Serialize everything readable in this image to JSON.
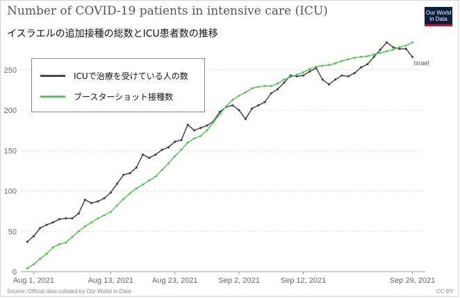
{
  "header": {
    "title": "Number of COVID-19 patients in intensive care (ICU)",
    "subtitle": "イスラエルの追加接種の総数とICU患者数の推移"
  },
  "logo": {
    "line1": "Our World",
    "line2": "in Data"
  },
  "footer": {
    "source": "Source: Official data collated by Our World in Data",
    "license": "CC BY"
  },
  "colors": {
    "icu": "#444444",
    "booster": "#5ec05e"
  },
  "chart_data": {
    "type": "line",
    "title": "Number of COVID-19 patients in intensive care (ICU)",
    "xlabel": "",
    "ylabel": "",
    "ylim": [
      0,
      285
    ],
    "xlim": [
      "2021-07-30",
      "2021-10-01"
    ],
    "grid": true,
    "legend_placement": "top-left",
    "yticks": [
      0,
      50,
      100,
      150,
      200,
      250
    ],
    "xticks": [
      {
        "date": "2021-08-01",
        "label": "Aug 1, 2021"
      },
      {
        "date": "2021-08-13",
        "label": "Aug 13, 2021"
      },
      {
        "date": "2021-08-23",
        "label": "Aug 23, 2021"
      },
      {
        "date": "2021-09-02",
        "label": "Sep 2, 2021"
      },
      {
        "date": "2021-09-12",
        "label": "Sep 12, 2021"
      },
      {
        "date": "2021-09-29",
        "label": "Sep 29, 2021"
      }
    ],
    "end_label": "Israel",
    "series": [
      {
        "name": "ICUで治療を受けている人の数",
        "color": "#444444",
        "points": [
          [
            "2021-07-31",
            37
          ],
          [
            "2021-08-01",
            44
          ],
          [
            "2021-08-02",
            54
          ],
          [
            "2021-08-03",
            58
          ],
          [
            "2021-08-04",
            61
          ],
          [
            "2021-08-05",
            65
          ],
          [
            "2021-08-06",
            66
          ],
          [
            "2021-08-07",
            66
          ],
          [
            "2021-08-08",
            72
          ],
          [
            "2021-08-09",
            89
          ],
          [
            "2021-08-10",
            85
          ],
          [
            "2021-08-11",
            87
          ],
          [
            "2021-08-12",
            91
          ],
          [
            "2021-08-13",
            98
          ],
          [
            "2021-08-14",
            109
          ],
          [
            "2021-08-15",
            120
          ],
          [
            "2021-08-16",
            122
          ],
          [
            "2021-08-17",
            129
          ],
          [
            "2021-08-18",
            145
          ],
          [
            "2021-08-19",
            141
          ],
          [
            "2021-08-20",
            145
          ],
          [
            "2021-08-21",
            151
          ],
          [
            "2021-08-22",
            154
          ],
          [
            "2021-08-23",
            161
          ],
          [
            "2021-08-24",
            163
          ],
          [
            "2021-08-25",
            182
          ],
          [
            "2021-08-26",
            175
          ],
          [
            "2021-08-27",
            178
          ],
          [
            "2021-08-28",
            181
          ],
          [
            "2021-08-29",
            186
          ],
          [
            "2021-08-30",
            198
          ],
          [
            "2021-08-31",
            204
          ],
          [
            "2021-09-01",
            206
          ],
          [
            "2021-09-02",
            200
          ],
          [
            "2021-09-03",
            189
          ],
          [
            "2021-09-04",
            202
          ],
          [
            "2021-09-05",
            206
          ],
          [
            "2021-09-06",
            210
          ],
          [
            "2021-09-07",
            221
          ],
          [
            "2021-09-08",
            226
          ],
          [
            "2021-09-09",
            234
          ],
          [
            "2021-09-10",
            243
          ],
          [
            "2021-09-11",
            242
          ],
          [
            "2021-09-12",
            243
          ],
          [
            "2021-09-13",
            248
          ],
          [
            "2021-09-14",
            252
          ],
          [
            "2021-09-15",
            238
          ],
          [
            "2021-09-16",
            232
          ],
          [
            "2021-09-17",
            238
          ],
          [
            "2021-09-18",
            243
          ],
          [
            "2021-09-19",
            242
          ],
          [
            "2021-09-20",
            246
          ],
          [
            "2021-09-21",
            253
          ],
          [
            "2021-09-22",
            257
          ],
          [
            "2021-09-23",
            266
          ],
          [
            "2021-09-24",
            275
          ],
          [
            "2021-09-25",
            284
          ],
          [
            "2021-09-26",
            278
          ],
          [
            "2021-09-27",
            276
          ],
          [
            "2021-09-28",
            276
          ],
          [
            "2021-09-29",
            266
          ]
        ]
      },
      {
        "name": "ブースターショット接種数",
        "color": "#5ec05e",
        "points": [
          [
            "2021-07-31",
            4
          ],
          [
            "2021-08-01",
            9
          ],
          [
            "2021-08-02",
            16
          ],
          [
            "2021-08-03",
            22
          ],
          [
            "2021-08-04",
            30
          ],
          [
            "2021-08-05",
            34
          ],
          [
            "2021-08-06",
            36
          ],
          [
            "2021-08-07",
            43
          ],
          [
            "2021-08-08",
            50
          ],
          [
            "2021-08-09",
            56
          ],
          [
            "2021-08-10",
            61
          ],
          [
            "2021-08-11",
            66
          ],
          [
            "2021-08-12",
            70
          ],
          [
            "2021-08-13",
            74
          ],
          [
            "2021-08-14",
            82
          ],
          [
            "2021-08-15",
            90
          ],
          [
            "2021-08-16",
            97
          ],
          [
            "2021-08-17",
            103
          ],
          [
            "2021-08-18",
            108
          ],
          [
            "2021-08-19",
            113
          ],
          [
            "2021-08-20",
            118
          ],
          [
            "2021-08-21",
            126
          ],
          [
            "2021-08-22",
            134
          ],
          [
            "2021-08-23",
            143
          ],
          [
            "2021-08-24",
            151
          ],
          [
            "2021-08-25",
            160
          ],
          [
            "2021-08-26",
            165
          ],
          [
            "2021-08-27",
            168
          ],
          [
            "2021-08-28",
            175
          ],
          [
            "2021-08-29",
            185
          ],
          [
            "2021-08-30",
            195
          ],
          [
            "2021-08-31",
            205
          ],
          [
            "2021-09-01",
            213
          ],
          [
            "2021-09-02",
            218
          ],
          [
            "2021-09-03",
            222
          ],
          [
            "2021-09-04",
            227
          ],
          [
            "2021-09-05",
            229
          ],
          [
            "2021-09-06",
            230
          ],
          [
            "2021-09-07",
            230
          ],
          [
            "2021-09-08",
            233
          ],
          [
            "2021-09-09",
            238
          ],
          [
            "2021-09-10",
            241
          ],
          [
            "2021-09-11",
            244
          ],
          [
            "2021-09-12",
            247
          ],
          [
            "2021-09-13",
            251
          ],
          [
            "2021-09-14",
            254
          ],
          [
            "2021-09-15",
            255
          ],
          [
            "2021-09-16",
            256
          ],
          [
            "2021-09-17",
            258
          ],
          [
            "2021-09-18",
            261
          ],
          [
            "2021-09-19",
            263
          ],
          [
            "2021-09-20",
            265
          ],
          [
            "2021-09-21",
            266
          ],
          [
            "2021-09-22",
            267
          ],
          [
            "2021-09-23",
            269
          ],
          [
            "2021-09-24",
            271
          ],
          [
            "2021-09-25",
            273
          ],
          [
            "2021-09-26",
            275
          ],
          [
            "2021-09-27",
            278
          ],
          [
            "2021-09-28",
            280
          ],
          [
            "2021-09-29",
            284
          ]
        ]
      }
    ]
  }
}
